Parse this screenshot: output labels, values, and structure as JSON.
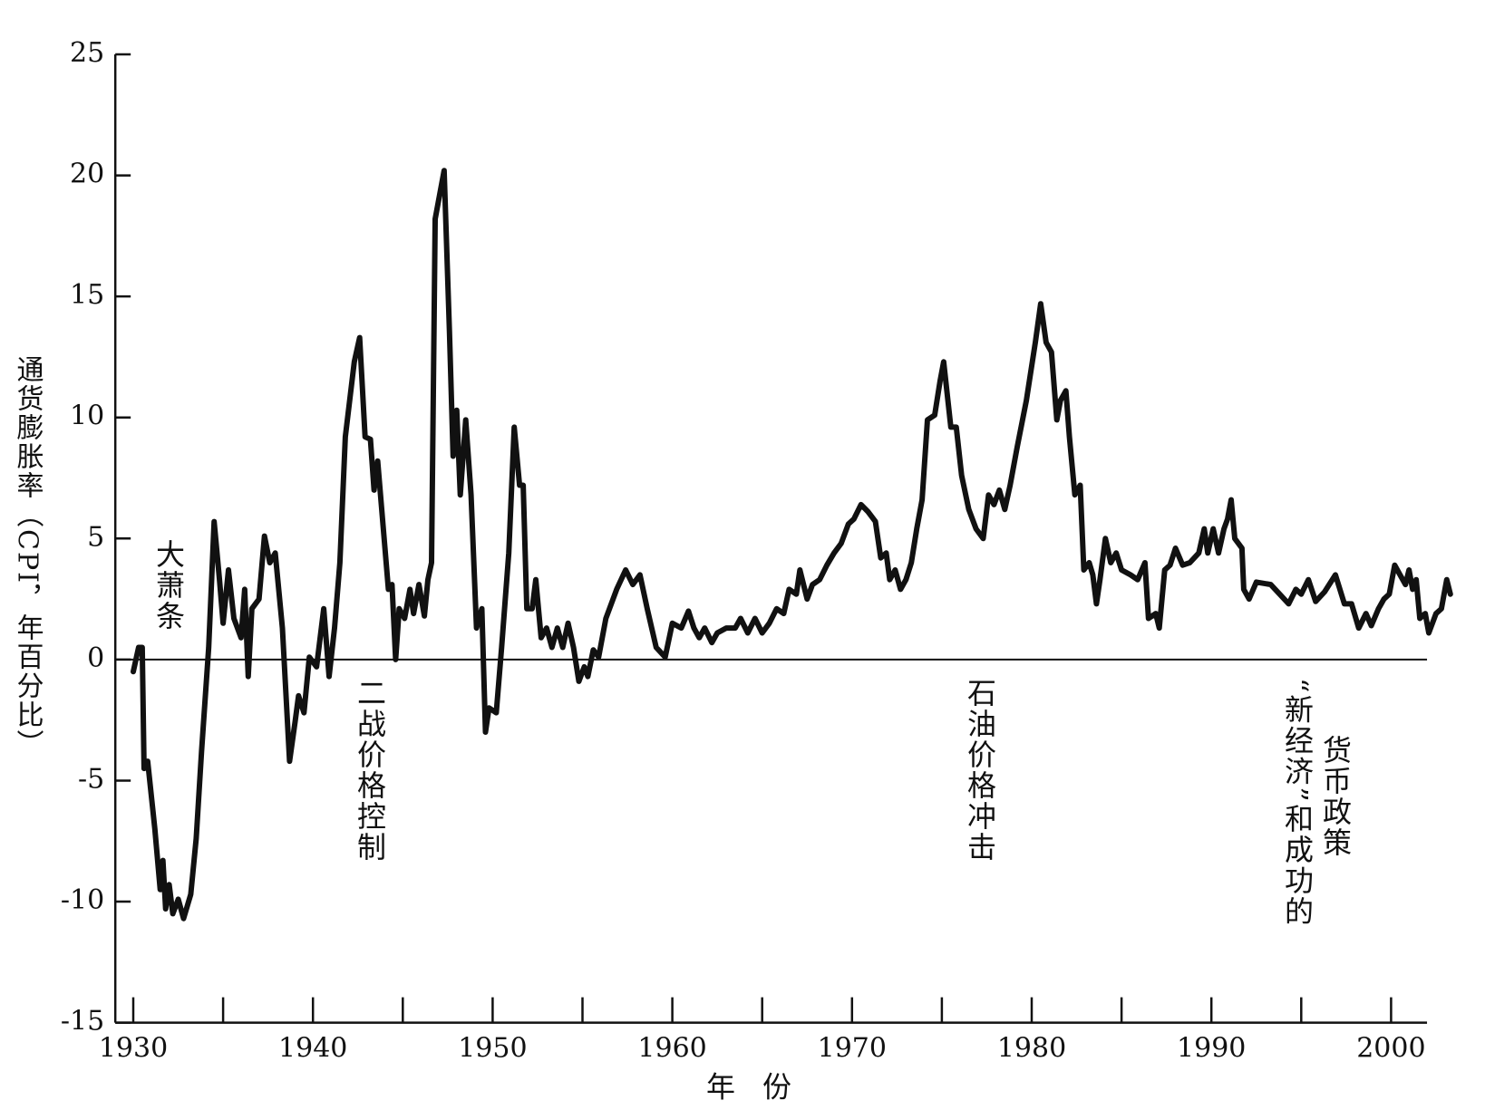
{
  "chart_data": {
    "type": "line",
    "x_label": "年份",
    "y_label": "通货膨胀率（CPI，年百分比）",
    "annotations": [
      "大萧条",
      "二战价格控制",
      "石油价格冲击",
      "“新经济”和成功的",
      "货币政策"
    ],
    "xlim": [
      1929,
      2002
    ],
    "ylim": [
      -15,
      25
    ],
    "xticks": [
      1930,
      1940,
      1950,
      1960,
      1970,
      1980,
      1990,
      2000
    ],
    "xminor_ticks": [
      1935,
      1945,
      1955,
      1965,
      1975,
      1985,
      1995
    ],
    "yticks": [
      25,
      20,
      15,
      10,
      5,
      0,
      -5,
      -10,
      -15
    ],
    "zero_line": true,
    "color": "#111111",
    "x": [
      1930.0,
      1930.3,
      1930.5,
      1930.6,
      1930.8,
      1931.2,
      1931.5,
      1931.65,
      1931.8,
      1932.0,
      1932.2,
      1932.5,
      1932.8,
      1933.2,
      1933.5,
      1933.8,
      1934.2,
      1934.5,
      1934.8,
      1935.0,
      1935.3,
      1935.6,
      1936.0,
      1936.2,
      1936.4,
      1936.6,
      1937.0,
      1937.3,
      1937.6,
      1937.9,
      1938.3,
      1938.7,
      1939.0,
      1939.2,
      1939.5,
      1939.8,
      1940.2,
      1940.6,
      1940.9,
      1941.2,
      1941.5,
      1941.8,
      1942.3,
      1942.6,
      1942.9,
      1943.2,
      1943.4,
      1943.6,
      1944.2,
      1944.4,
      1944.6,
      1944.8,
      1945.1,
      1945.4,
      1945.6,
      1945.9,
      1946.2,
      1946.4,
      1946.6,
      1946.8,
      1947.3,
      1947.6,
      1947.8,
      1948.0,
      1948.2,
      1948.5,
      1948.8,
      1949.1,
      1949.4,
      1949.6,
      1949.8,
      1950.2,
      1950.5,
      1950.9,
      1951.2,
      1951.5,
      1951.7,
      1951.9,
      1952.2,
      1952.4,
      1952.7,
      1953.0,
      1953.3,
      1953.6,
      1953.9,
      1954.2,
      1954.5,
      1954.8,
      1955.1,
      1955.3,
      1955.6,
      1955.9,
      1956.3,
      1956.9,
      1957.4,
      1957.8,
      1958.2,
      1958.6,
      1959.1,
      1959.6,
      1960.0,
      1960.5,
      1960.9,
      1961.2,
      1961.5,
      1961.8,
      1962.2,
      1962.5,
      1963.0,
      1963.5,
      1963.8,
      1964.2,
      1964.6,
      1965.0,
      1965.4,
      1965.8,
      1966.2,
      1966.5,
      1966.9,
      1967.1,
      1967.5,
      1967.8,
      1968.2,
      1968.6,
      1969.0,
      1969.4,
      1969.8,
      1970.1,
      1970.5,
      1970.9,
      1971.3,
      1971.6,
      1971.9,
      1972.1,
      1972.4,
      1972.7,
      1973.0,
      1973.3,
      1973.6,
      1973.9,
      1974.2,
      1974.6,
      1974.9,
      1975.1,
      1975.5,
      1975.8,
      1976.1,
      1976.5,
      1976.9,
      1977.3,
      1977.6,
      1977.9,
      1978.2,
      1978.5,
      1978.8,
      1979.2,
      1979.7,
      1980.2,
      1980.5,
      1980.8,
      1981.1,
      1981.4,
      1981.6,
      1981.9,
      1982.1,
      1982.4,
      1982.7,
      1982.9,
      1983.2,
      1983.4,
      1983.6,
      1983.8,
      1984.1,
      1984.4,
      1984.7,
      1985.0,
      1985.5,
      1985.9,
      1986.3,
      1986.5,
      1986.9,
      1987.1,
      1987.4,
      1987.7,
      1988.0,
      1988.4,
      1988.8,
      1989.3,
      1989.6,
      1989.8,
      1990.1,
      1990.4,
      1990.7,
      1990.9,
      1991.1,
      1991.3,
      1991.7,
      1991.8,
      1992.1,
      1992.5,
      1993.3,
      1993.8,
      1994.3,
      1994.7,
      1995.0,
      1995.4,
      1995.8,
      1996.3,
      1996.9,
      1997.4,
      1997.8,
      1998.2,
      1998.6,
      1998.9,
      1999.3,
      1999.6,
      1999.9,
      2000.2,
      2000.5,
      2000.8,
      2001.0,
      2001.2,
      2001.4,
      2001.6,
      2001.9,
      2002.1,
      2002.5,
      2002.8,
      2003.1,
      2003.3
    ],
    "values": [
      -0.5,
      0.5,
      0.5,
      -4.5,
      -4.2,
      -7,
      -9.5,
      -8.3,
      -10.3,
      -9.3,
      -10.5,
      -9.9,
      -10.7,
      -9.7,
      -7.4,
      -3.8,
      0.5,
      5.7,
      3.3,
      1.5,
      3.7,
      1.7,
      0.9,
      2.9,
      -0.7,
      2.1,
      2.5,
      5.1,
      4.0,
      4.4,
      1.3,
      -4.2,
      -2.6,
      -1.5,
      -2.2,
      0.1,
      -0.3,
      2.1,
      -0.7,
      1.3,
      4.0,
      9.2,
      12.3,
      13.3,
      9.2,
      9.1,
      7.0,
      8.2,
      2.9,
      3.1,
      0,
      2.1,
      1.7,
      2.9,
      1.9,
      3.1,
      1.8,
      3.3,
      4.0,
      18.2,
      20.2,
      13.5,
      8.4,
      10.3,
      6.8,
      9.9,
      6.8,
      1.3,
      2.1,
      -3.0,
      -2.0,
      -2.2,
      0.5,
      4.4,
      9.6,
      7.2,
      7.2,
      2.1,
      2.1,
      3.3,
      0.9,
      1.3,
      0.5,
      1.3,
      0.5,
      1.5,
      0.5,
      -0.9,
      -0.3,
      -0.7,
      0.4,
      0.1,
      1.7,
      2.9,
      3.7,
      3.1,
      3.5,
      2.1,
      0.5,
      0.1,
      1.5,
      1.3,
      2.0,
      1.3,
      0.9,
      1.3,
      0.7,
      1.1,
      1.3,
      1.3,
      1.7,
      1.1,
      1.7,
      1.1,
      1.5,
      2.1,
      1.9,
      2.9,
      2.7,
      3.7,
      2.5,
      3.1,
      3.3,
      3.9,
      4.4,
      4.8,
      5.6,
      5.8,
      6.4,
      6.1,
      5.7,
      4.2,
      4.4,
      3.3,
      3.7,
      2.9,
      3.3,
      4.0,
      5.4,
      6.6,
      9.9,
      10.1,
      11.5,
      12.3,
      9.6,
      9.6,
      7.6,
      6.2,
      5.4,
      5.0,
      6.8,
      6.4,
      7.0,
      6.2,
      7.2,
      8.8,
      10.7,
      13.1,
      14.7,
      13.1,
      12.7,
      9.9,
      10.7,
      11.1,
      9.2,
      6.8,
      7.2,
      3.7,
      4.0,
      3.5,
      2.3,
      3.3,
      5.0,
      4.0,
      4.4,
      3.7,
      3.5,
      3.3,
      4.0,
      1.7,
      1.9,
      1.3,
      3.7,
      3.9,
      4.6,
      3.9,
      4.0,
      4.4,
      5.4,
      4.4,
      5.4,
      4.4,
      5.4,
      5.8,
      6.6,
      5.0,
      4.6,
      2.9,
      2.5,
      3.2,
      3.1,
      2.7,
      2.3,
      2.9,
      2.7,
      3.3,
      2.4,
      2.8,
      3.5,
      2.3,
      2.3,
      1.3,
      1.9,
      1.4,
      2.1,
      2.5,
      2.7,
      3.9,
      3.5,
      3.1,
      3.7,
      2.9,
      3.3,
      1.7,
      1.9,
      1.1,
      1.9,
      2.1,
      3.3,
      2.7
    ]
  }
}
